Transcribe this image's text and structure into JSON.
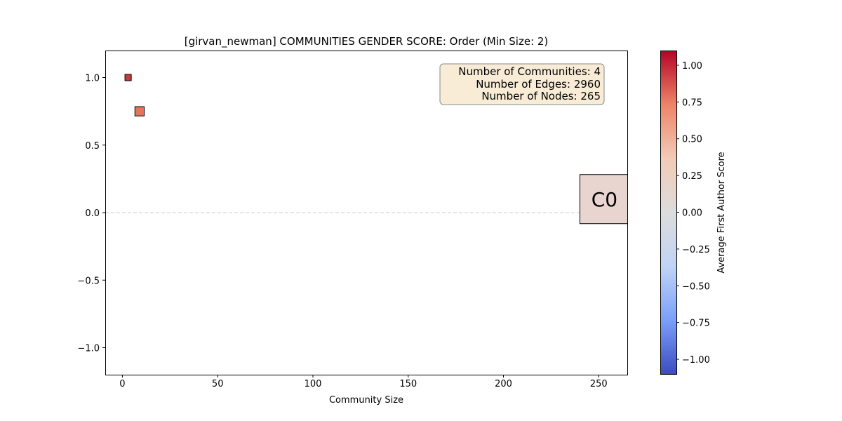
{
  "chart_data": {
    "type": "scatter",
    "title": "[girvan_newman] COMMUNITIES GENDER SCORE: Order (Min Size: 2)",
    "xlabel": "Community Size",
    "ylabel": "",
    "xlim": [
      -9,
      265
    ],
    "ylim": [
      -1.2,
      1.2
    ],
    "xticks": [
      0,
      50,
      100,
      150,
      200,
      250
    ],
    "xtick_labels": [
      "0",
      "50",
      "100",
      "150",
      "200",
      "250"
    ],
    "yticks": [
      1.0,
      0.5,
      0.0,
      -0.5,
      -1.0
    ],
    "ytick_labels": [
      "1.0",
      "0.5",
      "0.0",
      "−0.5",
      "−1.0"
    ],
    "grid": false,
    "reference_line": {
      "y": 0.0,
      "style": "dashed",
      "color": "#cccccc"
    },
    "points": [
      {
        "size": 3,
        "score": 1.0,
        "color": "#c83b3b",
        "label": ""
      },
      {
        "size": 9,
        "score": 0.75,
        "color": "#e8755b",
        "label": ""
      },
      {
        "size": 253,
        "score": 0.1,
        "color": "#e8d5cf",
        "label": "C0"
      }
    ],
    "info_box": {
      "lines": [
        "Number of Communities: 4",
        "Number of Edges: 2960",
        "Number of Nodes: 265"
      ],
      "position": "top-right",
      "background": "#f8ecd6"
    },
    "colorbar": {
      "label": "Average First Author Score",
      "range": [
        -1.1,
        1.1
      ],
      "ticks": [
        1.0,
        0.75,
        0.5,
        0.25,
        0.0,
        -0.25,
        -0.5,
        -0.75,
        -1.0
      ],
      "tick_labels": [
        "1.00",
        "0.75",
        "0.50",
        "0.25",
        "0.00",
        "−0.25",
        "−0.50",
        "−0.75",
        "−1.00"
      ],
      "colormap": [
        "#3b4cc0",
        "#7b9ff9",
        "#c0d4f5",
        "#dddcdc",
        "#f2cbb7",
        "#ee8468",
        "#b40426"
      ]
    }
  }
}
